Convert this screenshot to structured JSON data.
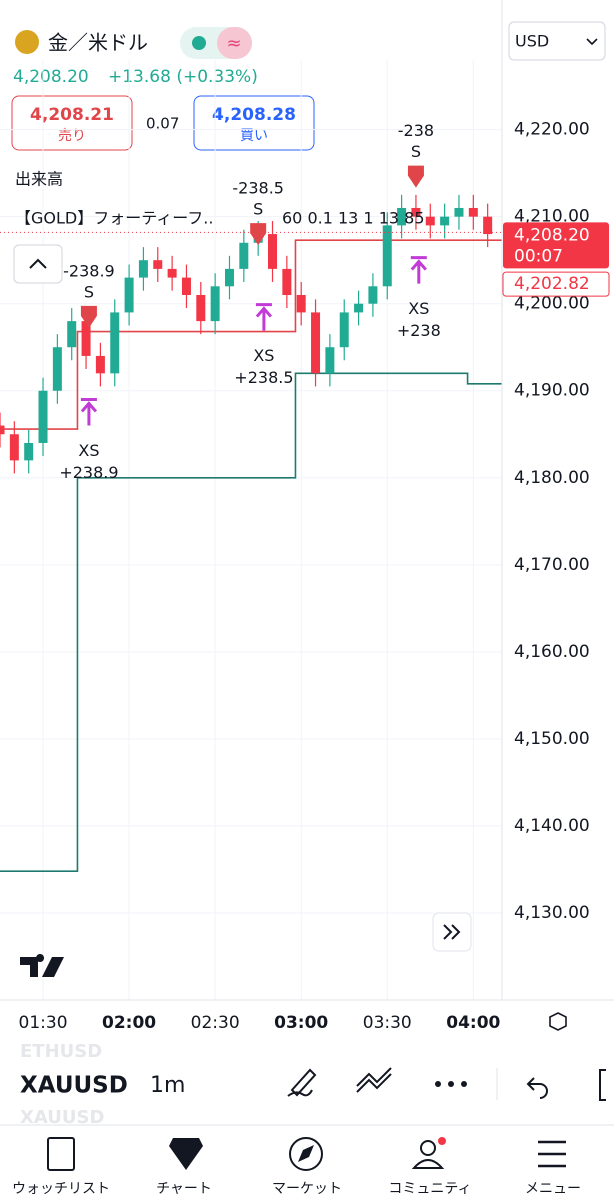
{
  "header": {
    "symbol_name": "金／米ドル",
    "currency": "USD",
    "last": "4,208.20",
    "change": "+13.68 (+0.33%)",
    "sell_price": "4,208.21",
    "sell_label": "売り",
    "spread": "0.07",
    "buy_price": "4,208.28",
    "buy_label": "買い",
    "volume_label": "出来高",
    "indicator_name": "【GOLD】フォーティーフ..",
    "indicator_params": "60 0.1 13 1 13 85"
  },
  "chart_data": {
    "type": "candlestick",
    "xlim": [
      75,
      250
    ],
    "ylim": [
      4120,
      4228
    ],
    "xticks": [
      {
        "value": 90,
        "label": "01:30"
      },
      {
        "value": 120,
        "label": "02:00"
      },
      {
        "value": 150,
        "label": "02:30"
      },
      {
        "value": 180,
        "label": "03:00"
      },
      {
        "value": 210,
        "label": "03:30"
      },
      {
        "value": 240,
        "label": "04:00"
      }
    ],
    "yticks": [
      {
        "value": 4130,
        "label": "4,130.00"
      },
      {
        "value": 4140,
        "label": "4,140.00"
      },
      {
        "value": 4150,
        "label": "4,150.00"
      },
      {
        "value": 4160,
        "label": "4,160.00"
      },
      {
        "value": 4170,
        "label": "4,170.00"
      },
      {
        "value": 4180,
        "label": "4,180.00"
      },
      {
        "value": 4190,
        "label": "4,190.00"
      },
      {
        "value": 4200,
        "label": "4,200.00"
      },
      {
        "value": 4210,
        "label": "4,210.00"
      },
      {
        "value": 4220,
        "label": "4,220.00"
      }
    ],
    "up_color": "#22ab94",
    "down_color": "#f23645",
    "candles": {
      "x": [
        75,
        80,
        85,
        90,
        95,
        100,
        105,
        110,
        115,
        120,
        125,
        130,
        135,
        140,
        145,
        150,
        155,
        160,
        165,
        170,
        175,
        180,
        185,
        190,
        195,
        200,
        205,
        210,
        215,
        220,
        225,
        230,
        235,
        240,
        245
      ],
      "open": [
        4186,
        4185,
        4182,
        4184,
        4190,
        4195,
        4198,
        4194,
        4192,
        4199,
        4203,
        4205,
        4204,
        4203,
        4201,
        4198,
        4202,
        4204,
        4207,
        4208,
        4204,
        4201,
        4199,
        4192,
        4195,
        4199,
        4200,
        4202,
        4209,
        4211,
        4210,
        4209,
        4210,
        4211,
        4210
      ],
      "high": [
        4187.5,
        4186.5,
        4185.5,
        4191.5,
        4196.5,
        4199.5,
        4199.5,
        4195.5,
        4200.5,
        4204.5,
        4206.5,
        4206.5,
        4205.5,
        4204.5,
        4202.5,
        4203.5,
        4205.5,
        4208.5,
        4209.5,
        4209.5,
        4205.5,
        4202.5,
        4200.5,
        4196.5,
        4200.5,
        4201.5,
        4203.5,
        4210.5,
        4212.5,
        4212.5,
        4211.5,
        4211.5,
        4212.5,
        4212.5,
        4211.5
      ],
      "low": [
        4183.5,
        4180.5,
        4180.5,
        4182.5,
        4188.5,
        4193.5,
        4192.5,
        4190.5,
        4190.5,
        4197.5,
        4201.5,
        4202.5,
        4201.5,
        4199.5,
        4196.5,
        4196.5,
        4200.5,
        4202.5,
        4205.5,
        4202.5,
        4199.5,
        4197.5,
        4190.5,
        4190.5,
        4193.5,
        4197.5,
        4198.5,
        4200.5,
        4207.5,
        4208.5,
        4207.5,
        4207.5,
        4208.5,
        4208.5,
        4206.5
      ],
      "close": [
        4185,
        4182,
        4184,
        4190,
        4195,
        4198,
        4194,
        4192,
        4199,
        4203,
        4205,
        4204,
        4203,
        4201,
        4198,
        4202,
        4204,
        4207,
        4208,
        4204,
        4201,
        4199,
        4192,
        4195,
        4199,
        4200,
        4202,
        4209,
        4211,
        4210,
        4209,
        4210,
        4211,
        4210,
        4208
      ]
    },
    "lines": [
      {
        "color": "#e0454a",
        "x": [
          75,
          102,
          102,
          178,
          178,
          250
        ],
        "values": [
          4185.6,
          4185.6,
          4196.8,
          4196.8,
          4207.3,
          4207.3
        ]
      },
      {
        "color": "#1e7a6e",
        "x": [
          75,
          102,
          102,
          178,
          178,
          238,
          238,
          250
        ],
        "values": [
          4134.8,
          4134.8,
          4180,
          4180,
          4192,
          4192,
          4190.8,
          4190.8
        ]
      }
    ],
    "signals": [
      {
        "kind": "sell",
        "x": 106,
        "price": 4197,
        "labels": [
          "-238.9",
          "S"
        ]
      },
      {
        "kind": "cover",
        "x": 106,
        "price": 4189,
        "labels": [
          "XS",
          "+238.9"
        ]
      },
      {
        "kind": "sell",
        "x": 165,
        "price": 4206.5,
        "labels": [
          "-238.5",
          "S"
        ]
      },
      {
        "kind": "cover",
        "x": 167,
        "price": 4199.9,
        "labels": [
          "XS",
          "+238.5"
        ]
      },
      {
        "kind": "sell",
        "x": 220,
        "price": 4213.1,
        "labels": [
          "-238",
          "S"
        ]
      },
      {
        "kind": "cover",
        "x": 221,
        "price": 4205.3,
        "labels": [
          "XS",
          "+238"
        ]
      }
    ],
    "last_price": {
      "value": 4208.2,
      "label": "4,208.20"
    },
    "countdown": "00:07",
    "ref_price": {
      "value": 4202.82,
      "label": "4,202.82"
    }
  },
  "toolbar": {
    "ghost_top": "ETHUSD",
    "symbol": "XAUUSD",
    "ghost_bottom": "XAUUSD",
    "interval": "1m"
  },
  "nav": [
    "ウォッチリスト",
    "チャート",
    "マーケット",
    "コミュニティ",
    "メニュー"
  ]
}
